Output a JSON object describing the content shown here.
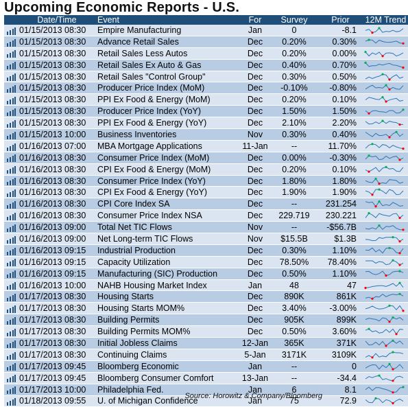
{
  "title": "Upcoming Economic Reports - U.S.",
  "columns": [
    "Date/Time",
    "Event",
    "For",
    "Survey",
    "Prior",
    "12M Trend"
  ],
  "rows": [
    {
      "datetime": "01/15/2013 08:30",
      "event": "Empire Manufacturing",
      "for": "Jan",
      "survey": "0",
      "prior": "-8.1"
    },
    {
      "datetime": "01/15/2013 08:30",
      "event": "Advance Retail Sales",
      "for": "Dec",
      "survey": "0.20%",
      "prior": "0.30%"
    },
    {
      "datetime": "01/15/2013 08:30",
      "event": "Retail Sales Less Autos",
      "for": "Dec",
      "survey": "0.20%",
      "prior": "0.00%"
    },
    {
      "datetime": "01/15/2013 08:30",
      "event": "Retail Sales Ex Auto & Gas",
      "for": "Dec",
      "survey": "0.40%",
      "prior": "0.70%"
    },
    {
      "datetime": "01/15/2013 08:30",
      "event": "Retail Sales \"Control Group\"",
      "for": "Dec",
      "survey": "0.30%",
      "prior": "0.50%"
    },
    {
      "datetime": "01/15/2013 08:30",
      "event": "Producer Price Index (MoM)",
      "for": "Dec",
      "survey": "-0.10%",
      "prior": "-0.80%"
    },
    {
      "datetime": "01/15/2013 08:30",
      "event": "PPI Ex Food & Energy (MoM)",
      "for": "Dec",
      "survey": "0.20%",
      "prior": "0.10%"
    },
    {
      "datetime": "01/15/2013 08:30",
      "event": "Producer Price Index (YoY)",
      "for": "Dec",
      "survey": "1.50%",
      "prior": "1.50%"
    },
    {
      "datetime": "01/15/2013 08:30",
      "event": "PPI Ex Food & Energy (YoY)",
      "for": "Dec",
      "survey": "2.10%",
      "prior": "2.20%"
    },
    {
      "datetime": "01/15/2013 10:00",
      "event": "Business Inventories",
      "for": "Nov",
      "survey": "0.30%",
      "prior": "0.40%"
    },
    {
      "datetime": "01/16/2013 07:00",
      "event": "MBA Mortgage Applications",
      "for": "11-Jan",
      "survey": "--",
      "prior": "11.70%"
    },
    {
      "datetime": "01/16/2013 08:30",
      "event": "Consumer Price Index (MoM)",
      "for": "Dec",
      "survey": "0.00%",
      "prior": "-0.30%"
    },
    {
      "datetime": "01/16/2013 08:30",
      "event": "CPI Ex Food & Energy (MoM)",
      "for": "Dec",
      "survey": "0.20%",
      "prior": "0.10%"
    },
    {
      "datetime": "01/16/2013 08:30",
      "event": "Consumer Price Index (YoY)",
      "for": "Dec",
      "survey": "1.80%",
      "prior": "1.80%"
    },
    {
      "datetime": "01/16/2013 08:30",
      "event": "CPI Ex Food & Energy (YoY)",
      "for": "Dec",
      "survey": "1.90%",
      "prior": "1.90%"
    },
    {
      "datetime": "01/16/2013 08:30",
      "event": "CPI Core Index SA",
      "for": "Dec",
      "survey": "--",
      "prior": "231.254"
    },
    {
      "datetime": "01/16/2013 08:30",
      "event": "Consumer Price Index NSA",
      "for": "Dec",
      "survey": "229.719",
      "prior": "230.221"
    },
    {
      "datetime": "01/16/2013 09:00",
      "event": "Total Net TIC Flows",
      "for": "Nov",
      "survey": "--",
      "prior": "-$56.7B"
    },
    {
      "datetime": "01/16/2013 09:00",
      "event": "Net Long-term TIC Flows",
      "for": "Nov",
      "survey": "$15.5B",
      "prior": "$1.3B"
    },
    {
      "datetime": "01/16/2013 09:15",
      "event": "Industrial Production",
      "for": "Dec",
      "survey": "0.30%",
      "prior": "1.10%"
    },
    {
      "datetime": "01/16/2013 09:15",
      "event": "Capacity Utilization",
      "for": "Dec",
      "survey": "78.50%",
      "prior": "78.40%"
    },
    {
      "datetime": "01/16/2013 09:15",
      "event": "Manufacturing (SIC) Production",
      "for": "Dec",
      "survey": "0.50%",
      "prior": "1.10%"
    },
    {
      "datetime": "01/16/2013 10:00",
      "event": "NAHB Housing Market Index",
      "for": "Jan",
      "survey": "48",
      "prior": "47"
    },
    {
      "datetime": "01/17/2013 08:30",
      "event": "Housing Starts",
      "for": "Dec",
      "survey": "890K",
      "prior": "861K"
    },
    {
      "datetime": "01/17/2013 08:30",
      "event": "Housing Starts MOM%",
      "for": "Dec",
      "survey": "3.40%",
      "prior": "-3.00%"
    },
    {
      "datetime": "01/17/2013 08:30",
      "event": "Building Permits",
      "for": "Dec",
      "survey": "905K",
      "prior": "899K"
    },
    {
      "datetime": "01/17/2013 08:30",
      "event": "Building Permits MOM%",
      "for": "Dec",
      "survey": "0.50%",
      "prior": "3.60%"
    },
    {
      "datetime": "01/17/2013 08:30",
      "event": "Initial Jobless Claims",
      "for": "12-Jan",
      "survey": "365K",
      "prior": "371K"
    },
    {
      "datetime": "01/17/2013 08:30",
      "event": "Continuing Claims",
      "for": "5-Jan",
      "survey": "3171K",
      "prior": "3109K"
    },
    {
      "datetime": "01/17/2013 09:45",
      "event": "Bloomberg Economic",
      "for": "Jan",
      "survey": "--",
      "prior": "0"
    },
    {
      "datetime": "01/17/2013 09:45",
      "event": "Bloomberg Consumer Comfort",
      "for": "13-Jan",
      "survey": "--",
      "prior": "-34.4"
    },
    {
      "datetime": "01/17/2013 10:00",
      "event": "Philadelphia Fed.",
      "for": "Jan",
      "survey": "6",
      "prior": "8.1"
    },
    {
      "datetime": "01/18/2013 09:55",
      "event": "U. of Michigan Confidence",
      "for": "Jan",
      "survey": "75",
      "prior": "72.9"
    }
  ],
  "icon": "bar-chart-icon",
  "colors": {
    "header_bg": "#1f4e79",
    "row_light": "#dbe5f1",
    "row_dark": "#b8cce4",
    "sparkline": "#2e75b6",
    "marker_high": "#00b050",
    "marker_low": "#ff0000"
  },
  "source": "Source: Horowitz & Company/Bloomberg"
}
